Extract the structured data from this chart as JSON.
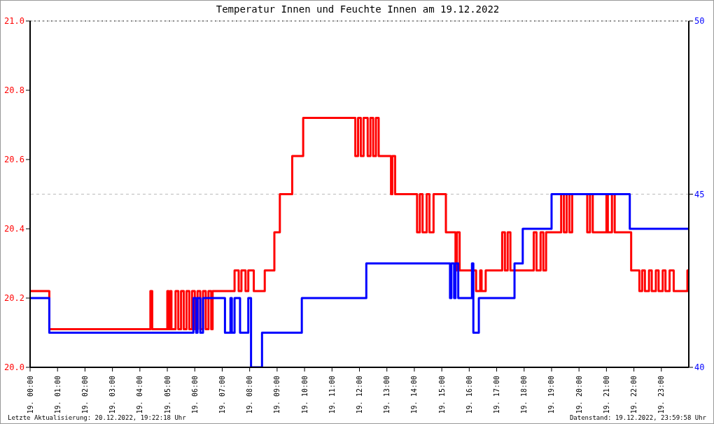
{
  "chart_data": {
    "type": "step",
    "title": "Temperatur Innen und Feuchte Innen am 19.12.2022",
    "xlim": [
      "2022-12-19T00:00",
      "2022-12-20T00:00"
    ],
    "xticks": [
      {
        "value": "2022-12-19T00:00",
        "label": "19. 00:00"
      },
      {
        "value": "2022-12-19T01:00",
        "label": "19. 01:00"
      },
      {
        "value": "2022-12-19T02:00",
        "label": "19. 02:00"
      },
      {
        "value": "2022-12-19T03:00",
        "label": "19. 03:00"
      },
      {
        "value": "2022-12-19T04:00",
        "label": "19. 04:00"
      },
      {
        "value": "2022-12-19T05:00",
        "label": "19. 05:00"
      },
      {
        "value": "2022-12-19T06:00",
        "label": "19. 06:00"
      },
      {
        "value": "2022-12-19T07:00",
        "label": "19. 07:00"
      },
      {
        "value": "2022-12-19T08:00",
        "label": "19. 08:00"
      },
      {
        "value": "2022-12-19T09:00",
        "label": "19. 09:00"
      },
      {
        "value": "2022-12-19T10:00",
        "label": "19. 10:00"
      },
      {
        "value": "2022-12-19T11:00",
        "label": "19. 11:00"
      },
      {
        "value": "2022-12-19T12:00",
        "label": "19. 12:00"
      },
      {
        "value": "2022-12-19T13:00",
        "label": "19. 13:00"
      },
      {
        "value": "2022-12-19T14:00",
        "label": "19. 14:00"
      },
      {
        "value": "2022-12-19T15:00",
        "label": "19. 15:00"
      },
      {
        "value": "2022-12-19T16:00",
        "label": "19. 16:00"
      },
      {
        "value": "2022-12-19T17:00",
        "label": "19. 17:00"
      },
      {
        "value": "2022-12-19T18:00",
        "label": "19. 18:00"
      },
      {
        "value": "2022-12-19T19:00",
        "label": "19. 19:00"
      },
      {
        "value": "2022-12-19T20:00",
        "label": "19. 20:00"
      },
      {
        "value": "2022-12-19T21:00",
        "label": "19. 21:00"
      },
      {
        "value": "2022-12-19T22:00",
        "label": "19. 22:00"
      },
      {
        "value": "2022-12-19T23:00",
        "label": "19. 23:00"
      }
    ],
    "ylim": [
      20.0,
      21.0
    ],
    "yticks": [
      {
        "value": 20.0,
        "label": "20.0"
      },
      {
        "value": 20.2,
        "label": "20.2"
      },
      {
        "value": 20.4,
        "label": "20.4"
      },
      {
        "value": 20.6,
        "label": "20.6"
      },
      {
        "value": 20.8,
        "label": "20.8"
      },
      {
        "value": 21.0,
        "label": "21.0"
      }
    ],
    "y2lim": [
      40,
      50
    ],
    "y2ticks": [
      40,
      45,
      50
    ],
    "grid": true,
    "marker": "none",
    "line_style": "solid",
    "series": [
      {
        "color": "#ff0000",
        "x": [
          "2022-12-19T00:00",
          "2022-12-19T00:42",
          "2022-12-19T04:23",
          "2022-12-19T04:27",
          "2022-12-19T05:00",
          "2022-12-19T05:03",
          "2022-12-19T05:06",
          "2022-12-19T05:09",
          "2022-12-19T05:18",
          "2022-12-19T05:24",
          "2022-12-19T05:30",
          "2022-12-19T05:36",
          "2022-12-19T05:42",
          "2022-12-19T05:48",
          "2022-12-19T05:54",
          "2022-12-19T06:00",
          "2022-12-19T06:06",
          "2022-12-19T06:12",
          "2022-12-19T06:18",
          "2022-12-19T06:24",
          "2022-12-19T06:30",
          "2022-12-19T06:36",
          "2022-12-19T06:39",
          "2022-12-19T07:27",
          "2022-12-19T07:36",
          "2022-12-19T07:42",
          "2022-12-19T07:51",
          "2022-12-19T07:57",
          "2022-12-19T08:09",
          "2022-12-19T08:33",
          "2022-12-19T08:54",
          "2022-12-19T09:06",
          "2022-12-19T09:33",
          "2022-12-19T09:57",
          "2022-12-19T11:51",
          "2022-12-19T11:57",
          "2022-12-19T12:03",
          "2022-12-19T12:09",
          "2022-12-19T12:18",
          "2022-12-19T12:24",
          "2022-12-19T12:30",
          "2022-12-19T12:36",
          "2022-12-19T12:42",
          "2022-12-19T13:09",
          "2022-12-19T13:12",
          "2022-12-19T13:18",
          "2022-12-19T14:06",
          "2022-12-19T14:12",
          "2022-12-19T14:18",
          "2022-12-19T14:27",
          "2022-12-19T14:33",
          "2022-12-19T14:42",
          "2022-12-19T15:09",
          "2022-12-19T15:30",
          "2022-12-19T15:33",
          "2022-12-19T15:39",
          "2022-12-19T16:15",
          "2022-12-19T16:24",
          "2022-12-19T16:27",
          "2022-12-19T16:36",
          "2022-12-19T17:12",
          "2022-12-19T17:18",
          "2022-12-19T17:24",
          "2022-12-19T17:30",
          "2022-12-19T18:21",
          "2022-12-19T18:27",
          "2022-12-19T18:36",
          "2022-12-19T18:42",
          "2022-12-19T18:48",
          "2022-12-19T19:21",
          "2022-12-19T19:27",
          "2022-12-19T19:33",
          "2022-12-19T19:39",
          "2022-12-19T19:45",
          "2022-12-19T20:18",
          "2022-12-19T20:24",
          "2022-12-19T20:30",
          "2022-12-19T21:00",
          "2022-12-19T21:03",
          "2022-12-19T21:12",
          "2022-12-19T21:18",
          "2022-12-19T21:54",
          "2022-12-19T22:12",
          "2022-12-19T22:18",
          "2022-12-19T22:24",
          "2022-12-19T22:33",
          "2022-12-19T22:39",
          "2022-12-19T22:48",
          "2022-12-19T22:54",
          "2022-12-19T23:03",
          "2022-12-19T23:09",
          "2022-12-19T23:18",
          "2022-12-19T23:27",
          "2022-12-19T23:57",
          "2022-12-20T00:00"
        ],
        "values": [
          20.22,
          20.11,
          20.22,
          20.11,
          20.22,
          20.11,
          20.22,
          20.11,
          20.22,
          20.11,
          20.22,
          20.11,
          20.22,
          20.11,
          20.22,
          20.11,
          20.22,
          20.11,
          20.22,
          20.11,
          20.22,
          20.11,
          20.22,
          20.28,
          20.22,
          20.28,
          20.22,
          20.28,
          20.22,
          20.28,
          20.39,
          20.5,
          20.61,
          20.72,
          20.61,
          20.72,
          20.61,
          20.72,
          20.61,
          20.72,
          20.61,
          20.72,
          20.61,
          20.5,
          20.61,
          20.5,
          20.39,
          20.5,
          20.39,
          20.5,
          20.39,
          20.5,
          20.39,
          20.28,
          20.39,
          20.28,
          20.22,
          20.28,
          20.22,
          20.28,
          20.39,
          20.28,
          20.39,
          20.28,
          20.39,
          20.28,
          20.39,
          20.28,
          20.39,
          20.5,
          20.39,
          20.5,
          20.39,
          20.5,
          20.39,
          20.5,
          20.39,
          20.5,
          20.39,
          20.5,
          20.39,
          20.28,
          20.22,
          20.28,
          20.22,
          20.28,
          20.22,
          20.28,
          20.22,
          20.28,
          20.22,
          20.28,
          20.22,
          20.28,
          20.28
        ]
      },
      {
        "color": "#0000ff",
        "axis": "y2",
        "x": [
          "2022-12-19T00:00",
          "2022-12-19T00:42",
          "2022-12-19T05:57",
          "2022-12-19T06:03",
          "2022-12-19T06:06",
          "2022-12-19T06:12",
          "2022-12-19T06:18",
          "2022-12-19T07:06",
          "2022-12-19T07:18",
          "2022-12-19T07:21",
          "2022-12-19T07:27",
          "2022-12-19T07:39",
          "2022-12-19T07:57",
          "2022-12-19T08:03",
          "2022-12-19T08:27",
          "2022-12-19T09:54",
          "2022-12-19T12:15",
          "2022-12-19T15:18",
          "2022-12-19T15:21",
          "2022-12-19T15:27",
          "2022-12-19T15:30",
          "2022-12-19T15:36",
          "2022-12-19T16:06",
          "2022-12-19T16:09",
          "2022-12-19T16:21",
          "2022-12-19T17:39",
          "2022-12-19T17:57",
          "2022-12-19T19:00",
          "2022-12-19T21:51",
          "2022-12-20T00:00"
        ],
        "values": [
          42,
          41,
          42,
          41,
          42,
          41,
          42,
          41,
          42,
          41,
          42,
          41,
          42,
          40,
          41,
          42,
          43,
          42,
          43,
          42,
          43,
          42,
          43,
          41,
          42,
          43,
          44,
          45,
          44,
          44
        ]
      }
    ],
    "annotations": [
      "Letzte Aktualisierung: 20.12.2022, 19:22:18 Uhr",
      "Datenstand: 19.12.2022, 23:59:58 Uhr"
    ]
  }
}
